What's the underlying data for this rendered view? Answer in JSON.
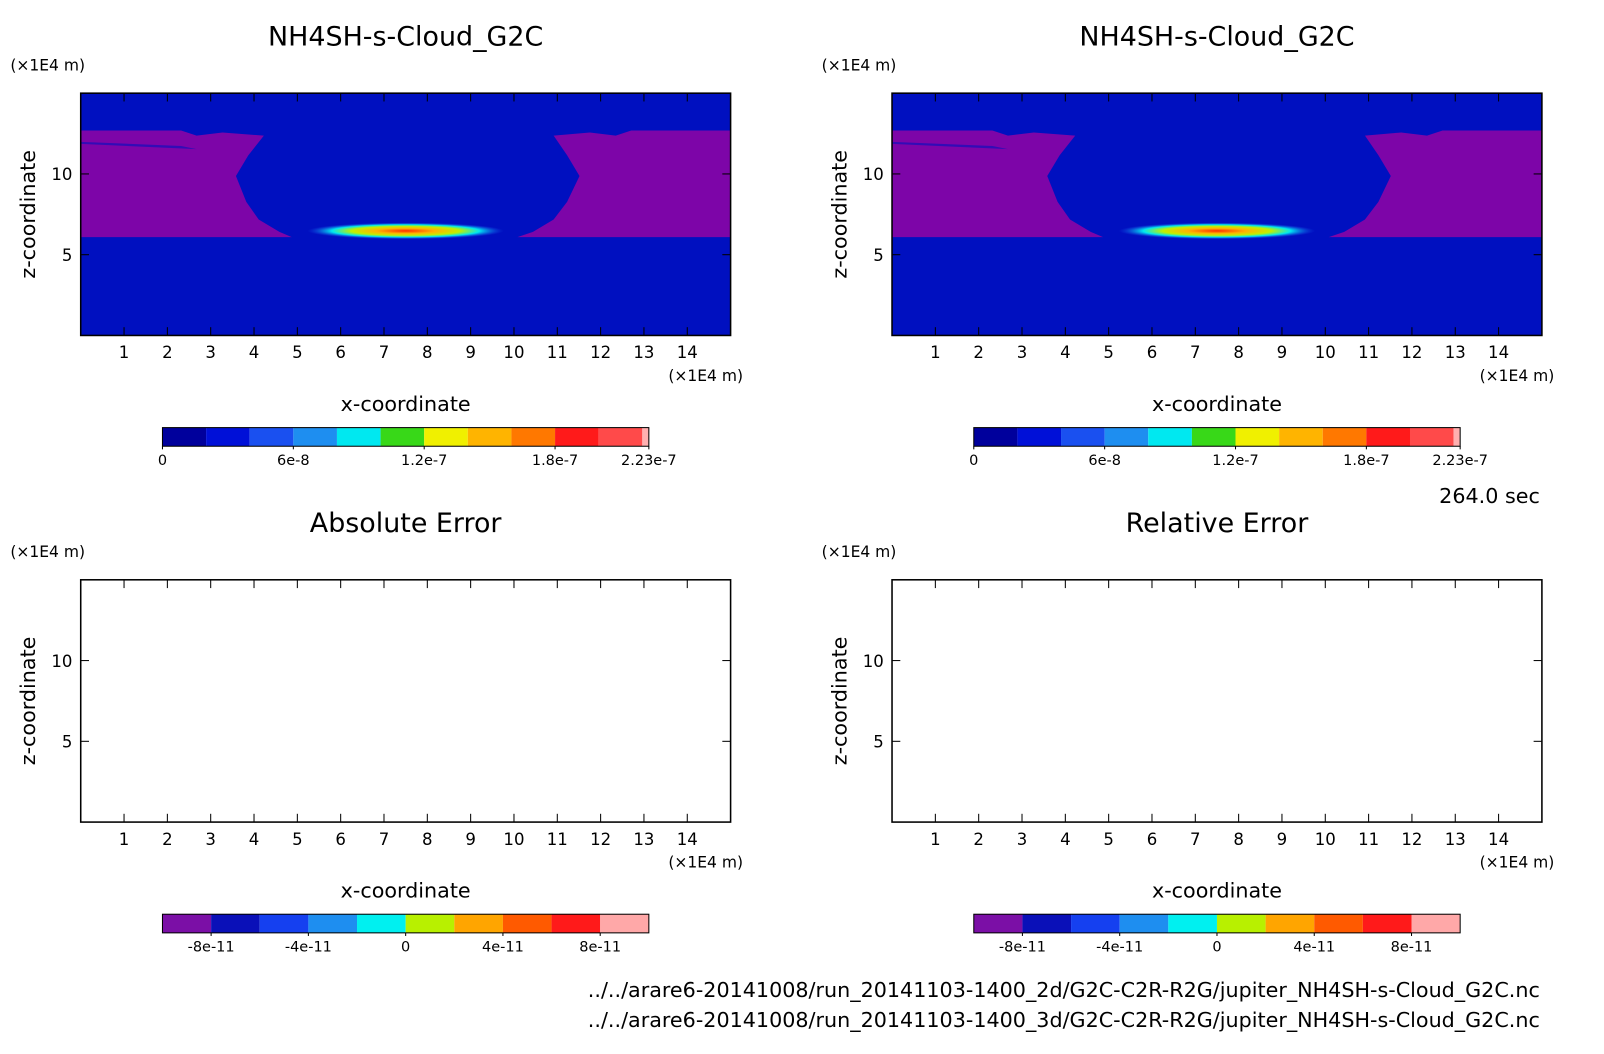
{
  "chart_data": [
    {
      "type": "contour",
      "title": "NH4SH-s-Cloud_G2C",
      "xlabel": "x-coordinate",
      "ylabel": "z-coordinate",
      "x_unit": "(×1E4 m)",
      "y_unit": "(×1E4 m)",
      "xlim": [
        0,
        15
      ],
      "ylim": [
        0,
        15
      ],
      "xticks": [
        1,
        2,
        3,
        4,
        5,
        6,
        7,
        8,
        9,
        10,
        11,
        12,
        13,
        14
      ],
      "yticks": [
        5,
        10
      ],
      "colorbar": {
        "levels": [
          0,
          2e-08,
          4e-08,
          6e-08,
          8e-08,
          1e-07,
          1.2e-07,
          1.4e-07,
          1.6e-07,
          1.8e-07,
          2e-07,
          2.2e-07,
          2.23e-07
        ],
        "colors": [
          "#00009c",
          "#0010d8",
          "#1a50f0",
          "#1e8ef0",
          "#00e8f0",
          "#38d818",
          "#f0f000",
          "#ffb400",
          "#ff7800",
          "#ff1a1a",
          "#ff4a4a",
          "#ffb0b0"
        ],
        "ticks": [
          0,
          6e-08,
          1.2e-07,
          1.8e-07,
          2.23e-07
        ]
      }
    },
    {
      "type": "contour",
      "title": "NH4SH-s-Cloud_G2C",
      "xlabel": "x-coordinate",
      "ylabel": "z-coordinate",
      "x_unit": "(×1E4 m)",
      "y_unit": "(×1E4 m)",
      "xlim": [
        0,
        15
      ],
      "ylim": [
        0,
        15
      ],
      "xticks": [
        1,
        2,
        3,
        4,
        5,
        6,
        7,
        8,
        9,
        10,
        11,
        12,
        13,
        14
      ],
      "yticks": [
        5,
        10
      ],
      "colorbar": {
        "levels": [
          0,
          2e-08,
          4e-08,
          6e-08,
          8e-08,
          1e-07,
          1.2e-07,
          1.4e-07,
          1.6e-07,
          1.8e-07,
          2e-07,
          2.2e-07,
          2.23e-07
        ],
        "colors": [
          "#00009c",
          "#0010d8",
          "#1a50f0",
          "#1e8ef0",
          "#00e8f0",
          "#38d818",
          "#f0f000",
          "#ffb400",
          "#ff7800",
          "#ff1a1a",
          "#ff4a4a",
          "#ffb0b0"
        ],
        "ticks": [
          0,
          6e-08,
          1.2e-07,
          1.8e-07,
          2.23e-07
        ]
      }
    },
    {
      "type": "contour",
      "title": "Absolute Error",
      "xlabel": "x-coordinate",
      "ylabel": "z-coordinate",
      "x_unit": "(×1E4 m)",
      "y_unit": "(×1E4 m)",
      "xlim": [
        0,
        15
      ],
      "ylim": [
        0,
        15
      ],
      "xticks": [
        1,
        2,
        3,
        4,
        5,
        6,
        7,
        8,
        9,
        10,
        11,
        12,
        13,
        14
      ],
      "yticks": [
        5,
        10
      ],
      "colorbar": {
        "levels": [
          -1e-10,
          -8e-11,
          -6e-11,
          -4e-11,
          -2e-11,
          0,
          2e-11,
          4e-11,
          6e-11,
          8e-11,
          1e-10
        ],
        "colors": [
          "#7b0fa6",
          "#0a10b8",
          "#1540f0",
          "#1e8ef0",
          "#00f0f0",
          "#b8f000",
          "#ffa500",
          "#ff5a00",
          "#ff1a1a",
          "#ffa8a8"
        ],
        "ticks": [
          -8e-11,
          -4e-11,
          0,
          4e-11,
          8e-11
        ]
      }
    },
    {
      "type": "contour",
      "title": "Relative Error",
      "xlabel": "x-coordinate",
      "ylabel": "z-coordinate",
      "x_unit": "(×1E4 m)",
      "y_unit": "(×1E4 m)",
      "xlim": [
        0,
        15
      ],
      "ylim": [
        0,
        15
      ],
      "xticks": [
        1,
        2,
        3,
        4,
        5,
        6,
        7,
        8,
        9,
        10,
        11,
        12,
        13,
        14
      ],
      "yticks": [
        5,
        10
      ],
      "colorbar": {
        "levels": [
          -1e-10,
          -8e-11,
          -6e-11,
          -4e-11,
          -2e-11,
          0,
          2e-11,
          4e-11,
          6e-11,
          8e-11,
          1e-10
        ],
        "colors": [
          "#7b0fa6",
          "#0a10b8",
          "#1540f0",
          "#1e8ef0",
          "#00f0f0",
          "#b8f000",
          "#ffa500",
          "#ff5a00",
          "#ff1a1a",
          "#ffa8a8"
        ],
        "ticks": [
          -8e-11,
          -4e-11,
          0,
          4e-11,
          8e-11
        ]
      }
    }
  ],
  "footer": {
    "time": "264.0 sec",
    "files": [
      "../../arare6-20141008/run_20141103-1400_2d/G2C-C2R-R2G/jupiter_NH4SH-s-Cloud_G2C.nc",
      "../../arare6-20141008/run_20141103-1400_3d/G2C-C2R-R2G/jupiter_NH4SH-s-Cloud_G2C.nc"
    ]
  }
}
